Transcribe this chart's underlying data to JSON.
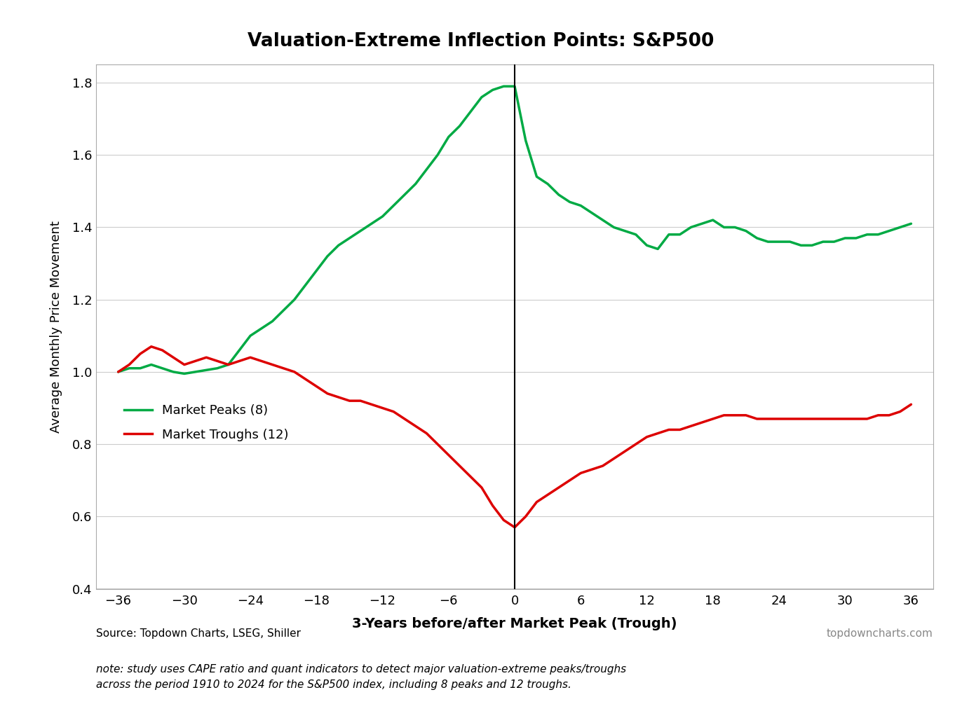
{
  "title": "Valuation-Extreme Inflection Points: S&P500",
  "xlabel": "3-Years before/after Market Peak (Trough)",
  "ylabel": "Average Monthly Price Movement",
  "source_left": "Source: Topdown Charts, LSEG, Shiller",
  "source_right": "topdowncharts.com",
  "note": "note: study uses CAPE ratio and quant indicators to detect major valuation-extreme peaks/troughs\nacross the period 1910 to 2024 for the S&P500 index, including 8 peaks and 12 troughs.",
  "xlim": [
    -38,
    38
  ],
  "ylim": [
    0.4,
    1.85
  ],
  "xticks": [
    -36,
    -30,
    -24,
    -18,
    -12,
    -6,
    0,
    6,
    12,
    18,
    24,
    30,
    36
  ],
  "yticks": [
    0.4,
    0.6,
    0.8,
    1.0,
    1.2,
    1.4,
    1.6,
    1.8
  ],
  "peaks_color": "#00aa44",
  "troughs_color": "#dd0000",
  "peaks_label": "Market Peaks (8)",
  "troughs_label": "Market Troughs (12)",
  "vline_x": 0,
  "peaks_x": [
    -36,
    -35,
    -34,
    -33,
    -32,
    -31,
    -30,
    -29,
    -28,
    -27,
    -26,
    -25,
    -24,
    -23,
    -22,
    -21,
    -20,
    -19,
    -18,
    -17,
    -16,
    -15,
    -14,
    -13,
    -12,
    -11,
    -10,
    -9,
    -8,
    -7,
    -6,
    -5,
    -4,
    -3,
    -2,
    -1,
    0,
    1,
    2,
    3,
    4,
    5,
    6,
    7,
    8,
    9,
    10,
    11,
    12,
    13,
    14,
    15,
    16,
    17,
    18,
    19,
    20,
    21,
    22,
    23,
    24,
    25,
    26,
    27,
    28,
    29,
    30,
    31,
    32,
    33,
    34,
    35,
    36
  ],
  "peaks_y": [
    1.0,
    1.01,
    1.01,
    1.02,
    1.01,
    1.0,
    0.995,
    1.0,
    1.005,
    1.01,
    1.02,
    1.06,
    1.1,
    1.12,
    1.14,
    1.17,
    1.2,
    1.24,
    1.28,
    1.32,
    1.35,
    1.37,
    1.39,
    1.41,
    1.43,
    1.46,
    1.49,
    1.52,
    1.56,
    1.6,
    1.65,
    1.68,
    1.72,
    1.76,
    1.78,
    1.79,
    1.79,
    1.64,
    1.54,
    1.52,
    1.49,
    1.47,
    1.46,
    1.44,
    1.42,
    1.4,
    1.39,
    1.38,
    1.35,
    1.34,
    1.38,
    1.38,
    1.4,
    1.41,
    1.42,
    1.4,
    1.4,
    1.39,
    1.37,
    1.36,
    1.36,
    1.36,
    1.35,
    1.35,
    1.36,
    1.36,
    1.37,
    1.37,
    1.38,
    1.38,
    1.39,
    1.4,
    1.41
  ],
  "troughs_x": [
    -36,
    -35,
    -34,
    -33,
    -32,
    -31,
    -30,
    -29,
    -28,
    -27,
    -26,
    -25,
    -24,
    -23,
    -22,
    -21,
    -20,
    -19,
    -18,
    -17,
    -16,
    -15,
    -14,
    -13,
    -12,
    -11,
    -10,
    -9,
    -8,
    -7,
    -6,
    -5,
    -4,
    -3,
    -2,
    -1,
    0,
    1,
    2,
    3,
    4,
    5,
    6,
    7,
    8,
    9,
    10,
    11,
    12,
    13,
    14,
    15,
    16,
    17,
    18,
    19,
    20,
    21,
    22,
    23,
    24,
    25,
    26,
    27,
    28,
    29,
    30,
    31,
    32,
    33,
    34,
    35,
    36
  ],
  "troughs_y": [
    1.0,
    1.02,
    1.05,
    1.07,
    1.06,
    1.04,
    1.02,
    1.03,
    1.04,
    1.03,
    1.02,
    1.03,
    1.04,
    1.03,
    1.02,
    1.01,
    1.0,
    0.98,
    0.96,
    0.94,
    0.93,
    0.92,
    0.92,
    0.91,
    0.9,
    0.89,
    0.87,
    0.85,
    0.83,
    0.8,
    0.77,
    0.74,
    0.71,
    0.68,
    0.63,
    0.59,
    0.57,
    0.6,
    0.64,
    0.66,
    0.68,
    0.7,
    0.72,
    0.73,
    0.74,
    0.76,
    0.78,
    0.8,
    0.82,
    0.83,
    0.84,
    0.84,
    0.85,
    0.86,
    0.87,
    0.88,
    0.88,
    0.88,
    0.87,
    0.87,
    0.87,
    0.87,
    0.87,
    0.87,
    0.87,
    0.87,
    0.87,
    0.87,
    0.87,
    0.88,
    0.88,
    0.89,
    0.91
  ]
}
